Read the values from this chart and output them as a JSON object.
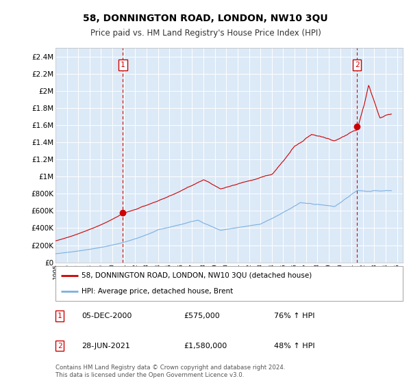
{
  "title": "58, DONNINGTON ROAD, LONDON, NW10 3QU",
  "subtitle": "Price paid vs. HM Land Registry's House Price Index (HPI)",
  "background_color": "white",
  "plot_bg_color": "#dce9f7",
  "hpi_color": "#7ab0e0",
  "price_color": "#cc0000",
  "ylim": [
    0,
    2500000
  ],
  "yticks": [
    0,
    200000,
    400000,
    600000,
    800000,
    1000000,
    1200000,
    1400000,
    1600000,
    1800000,
    2000000,
    2200000,
    2400000
  ],
  "ytick_labels": [
    "£0",
    "£200K",
    "£400K",
    "£600K",
    "£800K",
    "£1M",
    "£1.2M",
    "£1.4M",
    "£1.6M",
    "£1.8M",
    "£2M",
    "£2.2M",
    "£2.4M"
  ],
  "xlim_start": 1995.0,
  "xlim_end": 2025.5,
  "xtick_years": [
    1995,
    1996,
    1997,
    1998,
    1999,
    2000,
    2001,
    2002,
    2003,
    2004,
    2005,
    2006,
    2007,
    2008,
    2009,
    2010,
    2011,
    2012,
    2013,
    2014,
    2015,
    2016,
    2017,
    2018,
    2019,
    2020,
    2021,
    2022,
    2023,
    2024,
    2025
  ],
  "sale1_x": 2000.92,
  "sale1_y": 575000,
  "sale1_label": "1",
  "sale1_date": "05-DEC-2000",
  "sale1_price": "£575,000",
  "sale1_hpi": "76% ↑ HPI",
  "sale2_x": 2021.49,
  "sale2_y": 1580000,
  "sale2_label": "2",
  "sale2_date": "28-JUN-2021",
  "sale2_price": "£1,580,000",
  "sale2_hpi": "48% ↑ HPI",
  "legend_line1": "58, DONNINGTON ROAD, LONDON, NW10 3QU (detached house)",
  "legend_line2": "HPI: Average price, detached house, Brent",
  "footer": "Contains HM Land Registry data © Crown copyright and database right 2024.\nThis data is licensed under the Open Government Licence v3.0."
}
